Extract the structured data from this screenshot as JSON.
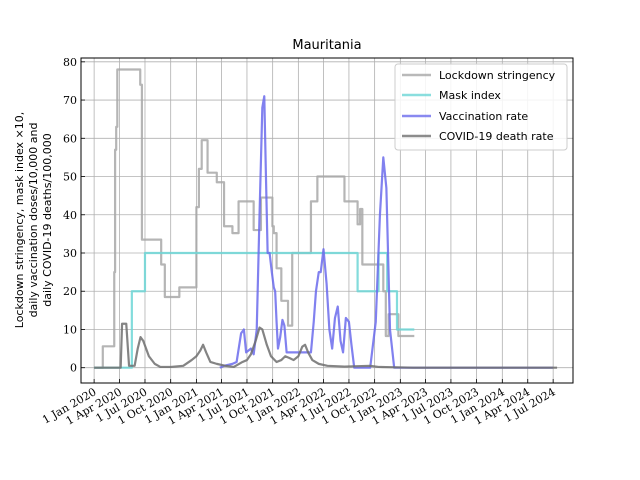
{
  "chart_data": {
    "type": "line",
    "title": "Mauritania",
    "ylabel": [
      "Lockdown stringency, mask index ×10,",
      "daily vaccination doses/10,000 and",
      "daily COVID-19 deaths/100,000"
    ],
    "xlabel": "",
    "ylim": [
      -4,
      81
    ],
    "yticks": [
      0,
      10,
      20,
      30,
      40,
      50,
      60,
      70,
      80
    ],
    "xlim": [
      "2019-11-15",
      "2024-09-10"
    ],
    "xticks": [
      "2020-01-01",
      "2020-04-01",
      "2020-07-01",
      "2020-10-01",
      "2021-01-01",
      "2021-04-01",
      "2021-07-01",
      "2021-10-01",
      "2022-01-01",
      "2022-04-01",
      "2022-07-01",
      "2022-10-01",
      "2023-01-01",
      "2023-04-01",
      "2023-07-01",
      "2023-10-01",
      "2024-01-01",
      "2024-04-01",
      "2024-07-01"
    ],
    "xtick_labels": [
      "1 Jan 2020",
      "1 Apr 2020",
      "1 Jul 2020",
      "1 Oct 2020",
      "1 Jan 2021",
      "1 Apr 2021",
      "1 Jul 2021",
      "1 Oct 2021",
      "1 Jan 2022",
      "1 Apr 2022",
      "1 Jul 2022",
      "1 Oct 2022",
      "1 Jan 2023",
      "1 Apr 2023",
      "1 Jul 2023",
      "1 Oct 2023",
      "1 Jan 2024",
      "1 Apr 2024",
      "1 Jul 2024"
    ],
    "grid": true,
    "legend_position": "top-right",
    "series": [
      {
        "name": "Lockdown stringency",
        "color": "#a8a8a8",
        "step": true,
        "points": [
          [
            "2020-01-01",
            0
          ],
          [
            "2020-02-01",
            5.6
          ],
          [
            "2020-03-10",
            5.6
          ],
          [
            "2020-03-13",
            25
          ],
          [
            "2020-03-16",
            57
          ],
          [
            "2020-03-20",
            63
          ],
          [
            "2020-03-24",
            78
          ],
          [
            "2020-06-10",
            78
          ],
          [
            "2020-06-14",
            74
          ],
          [
            "2020-06-20",
            33.5
          ],
          [
            "2020-08-15",
            33.5
          ],
          [
            "2020-08-28",
            27
          ],
          [
            "2020-09-10",
            18.5
          ],
          [
            "2020-10-20",
            18.5
          ],
          [
            "2020-11-01",
            21
          ],
          [
            "2020-12-15",
            21
          ],
          [
            "2021-01-01",
            42
          ],
          [
            "2021-01-10",
            52
          ],
          [
            "2021-01-20",
            59.5
          ],
          [
            "2021-02-10",
            51
          ],
          [
            "2021-03-15",
            48.5
          ],
          [
            "2021-04-10",
            37
          ],
          [
            "2021-05-10",
            35.2
          ],
          [
            "2021-06-01",
            43.5
          ],
          [
            "2021-07-25",
            36
          ],
          [
            "2021-08-20",
            44.5
          ],
          [
            "2021-09-30",
            37
          ],
          [
            "2021-10-05",
            35.2
          ],
          [
            "2021-10-15",
            26
          ],
          [
            "2021-11-01",
            17.5
          ],
          [
            "2021-11-25",
            11
          ],
          [
            "2021-12-10",
            30
          ],
          [
            "2022-02-15",
            43.5
          ],
          [
            "2022-03-10",
            50
          ],
          [
            "2022-06-15",
            43.5
          ],
          [
            "2022-08-01",
            37.5
          ],
          [
            "2022-08-10",
            41.5
          ],
          [
            "2022-08-18",
            27
          ],
          [
            "2022-11-01",
            20
          ],
          [
            "2022-11-10",
            8.3
          ],
          [
            "2022-11-20",
            14
          ],
          [
            "2022-12-25",
            8.3
          ],
          [
            "2023-02-20",
            8.3
          ]
        ]
      },
      {
        "name": "Mask index",
        "color": "#6dd6d6",
        "step": true,
        "points": [
          [
            "2020-01-01",
            0
          ],
          [
            "2020-05-10",
            0
          ],
          [
            "2020-05-15",
            20
          ],
          [
            "2020-06-25",
            20
          ],
          [
            "2020-07-01",
            30
          ],
          [
            "2022-07-25",
            30
          ],
          [
            "2022-08-01",
            20
          ],
          [
            "2022-10-10",
            20
          ],
          [
            "2022-10-15",
            30
          ],
          [
            "2022-11-10",
            30
          ],
          [
            "2022-11-15",
            20
          ],
          [
            "2022-12-15",
            20
          ],
          [
            "2022-12-20",
            10
          ],
          [
            "2023-02-20",
            10
          ]
        ]
      },
      {
        "name": "Vaccination rate",
        "color": "#6b6bec",
        "step": false,
        "points": [
          [
            "2021-03-26",
            0
          ],
          [
            "2021-04-10",
            0.5
          ],
          [
            "2021-05-10",
            1.0
          ],
          [
            "2021-05-25",
            1.5
          ],
          [
            "2021-06-10",
            9
          ],
          [
            "2021-06-20",
            10
          ],
          [
            "2021-06-28",
            4
          ],
          [
            "2021-07-15",
            5
          ],
          [
            "2021-07-25",
            3.5
          ],
          [
            "2021-08-05",
            10
          ],
          [
            "2021-08-15",
            40
          ],
          [
            "2021-08-25",
            68
          ],
          [
            "2021-09-01",
            71
          ],
          [
            "2021-09-07",
            50
          ],
          [
            "2021-09-13",
            30
          ],
          [
            "2021-09-20",
            30
          ],
          [
            "2021-09-28",
            25
          ],
          [
            "2021-10-05",
            21
          ],
          [
            "2021-10-10",
            20
          ],
          [
            "2021-10-15",
            12
          ],
          [
            "2021-10-20",
            5
          ],
          [
            "2021-10-28",
            8
          ],
          [
            "2021-11-05",
            12.5
          ],
          [
            "2021-11-12",
            11
          ],
          [
            "2021-11-20",
            4
          ],
          [
            "2021-12-15",
            4
          ],
          [
            "2022-02-15",
            4
          ],
          [
            "2022-02-25",
            12
          ],
          [
            "2022-03-05",
            20
          ],
          [
            "2022-03-15",
            25
          ],
          [
            "2022-03-22",
            25
          ],
          [
            "2022-04-01",
            31
          ],
          [
            "2022-04-12",
            22
          ],
          [
            "2022-04-22",
            10
          ],
          [
            "2022-05-02",
            5
          ],
          [
            "2022-05-12",
            13
          ],
          [
            "2022-05-22",
            16
          ],
          [
            "2022-06-01",
            7
          ],
          [
            "2022-06-10",
            4
          ],
          [
            "2022-06-20",
            13
          ],
          [
            "2022-07-01",
            12
          ],
          [
            "2022-07-10",
            6
          ],
          [
            "2022-07-20",
            0
          ],
          [
            "2022-09-15",
            0
          ],
          [
            "2022-10-05",
            12
          ],
          [
            "2022-10-20",
            40
          ],
          [
            "2022-11-01",
            55
          ],
          [
            "2022-11-12",
            47
          ],
          [
            "2022-11-25",
            10
          ],
          [
            "2022-12-10",
            0
          ],
          [
            "2024-06-30",
            0
          ]
        ]
      },
      {
        "name": "COVID-19 death rate",
        "color": "#6f6f6f",
        "step": false,
        "points": [
          [
            "2020-01-01",
            0
          ],
          [
            "2020-04-05",
            0
          ],
          [
            "2020-04-10",
            11.5
          ],
          [
            "2020-04-25",
            11.5
          ],
          [
            "2020-05-05",
            0.5
          ],
          [
            "2020-05-25",
            0.5
          ],
          [
            "2020-06-05",
            5
          ],
          [
            "2020-06-15",
            8
          ],
          [
            "2020-06-25",
            7
          ],
          [
            "2020-07-15",
            3
          ],
          [
            "2020-08-05",
            1
          ],
          [
            "2020-08-25",
            0.2
          ],
          [
            "2020-10-01",
            0.2
          ],
          [
            "2020-11-15",
            0.5
          ],
          [
            "2020-12-15",
            2
          ],
          [
            "2021-01-01",
            3
          ],
          [
            "2021-01-15",
            4.5
          ],
          [
            "2021-01-25",
            6
          ],
          [
            "2021-02-05",
            4
          ],
          [
            "2021-02-20",
            1.5
          ],
          [
            "2021-03-15",
            1
          ],
          [
            "2021-04-15",
            0.5
          ],
          [
            "2021-05-15",
            0.2
          ],
          [
            "2021-06-15",
            1.5
          ],
          [
            "2021-07-01",
            2
          ],
          [
            "2021-07-15",
            3.5
          ],
          [
            "2021-08-01",
            7
          ],
          [
            "2021-08-15",
            10.5
          ],
          [
            "2021-08-25",
            10
          ],
          [
            "2021-09-10",
            6
          ],
          [
            "2021-09-25",
            3
          ],
          [
            "2021-10-15",
            1.5
          ],
          [
            "2021-11-01",
            2
          ],
          [
            "2021-11-15",
            3
          ],
          [
            "2021-12-01",
            2.5
          ],
          [
            "2021-12-15",
            2
          ],
          [
            "2022-01-01",
            3
          ],
          [
            "2022-01-15",
            5.5
          ],
          [
            "2022-01-25",
            6
          ],
          [
            "2022-02-05",
            4
          ],
          [
            "2022-02-20",
            2
          ],
          [
            "2022-03-15",
            1
          ],
          [
            "2022-04-15",
            0.5
          ],
          [
            "2022-06-15",
            0.3
          ],
          [
            "2022-09-15",
            0.5
          ],
          [
            "2022-10-15",
            0.2
          ],
          [
            "2023-02-15",
            0
          ],
          [
            "2024-07-15",
            0
          ]
        ]
      }
    ]
  }
}
